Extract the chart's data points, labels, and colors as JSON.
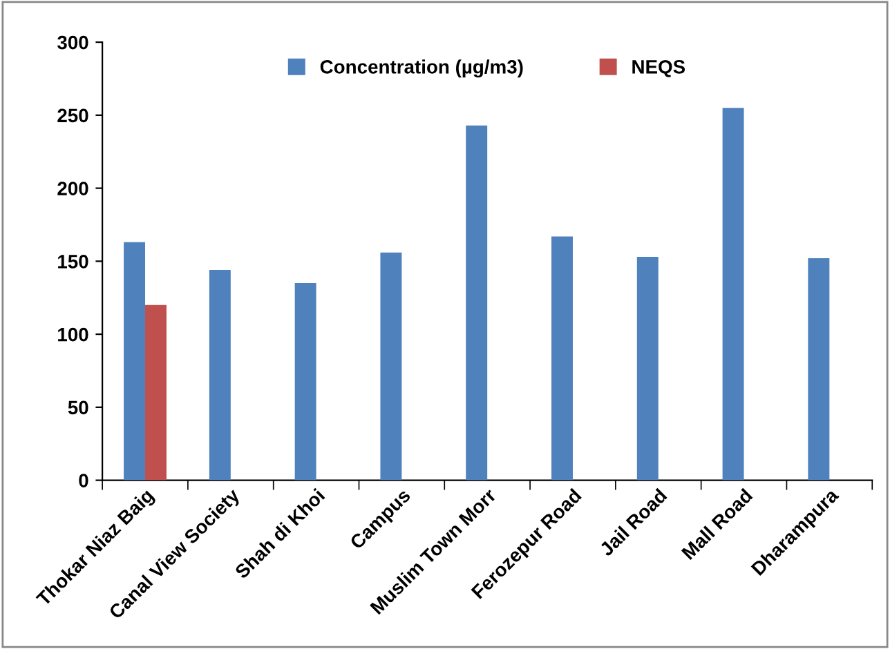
{
  "chart_data": {
    "type": "bar",
    "categories": [
      "Thokar Niaz Baig",
      "Canal View Society",
      "Shah di Khoi",
      "Campus",
      "Muslim Town Morr",
      "Ferozepur Road",
      "Jail Road",
      "Mall Road",
      "Dharampura"
    ],
    "series": [
      {
        "name": "Concentration (µg/m3)",
        "color": "#4f81bd",
        "values": [
          163,
          144,
          135,
          156,
          243,
          167,
          153,
          255,
          152
        ]
      },
      {
        "name": "NEQS",
        "color": "#c0504d",
        "values": [
          120,
          null,
          null,
          null,
          null,
          null,
          null,
          null,
          null
        ]
      }
    ],
    "ylim": [
      0,
      300
    ],
    "yticks": [
      0,
      50,
      100,
      150,
      200,
      250,
      300
    ],
    "grid": false,
    "legend": "top"
  }
}
